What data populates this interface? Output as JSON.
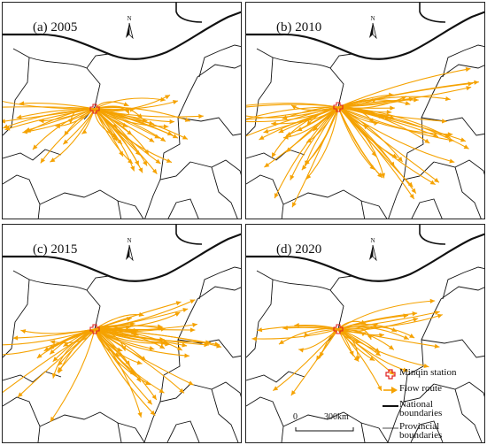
{
  "panels": [
    {
      "label": "(a) 2005"
    },
    {
      "label": "(b) 2010"
    },
    {
      "label": "(c) 2015"
    },
    {
      "label": "(d) 2020"
    }
  ],
  "north_arrow": {
    "letter": "N"
  },
  "legend": {
    "station": "Minqin station",
    "flow": "Flow route",
    "national": "National boundaries",
    "provincial": "Provincial boundaries"
  },
  "scale_bar": {
    "zero": "0",
    "distance": "300",
    "unit": "km"
  },
  "colors": {
    "flow": "#f5a200",
    "station": "#e02020",
    "boundary": "#111111"
  }
}
